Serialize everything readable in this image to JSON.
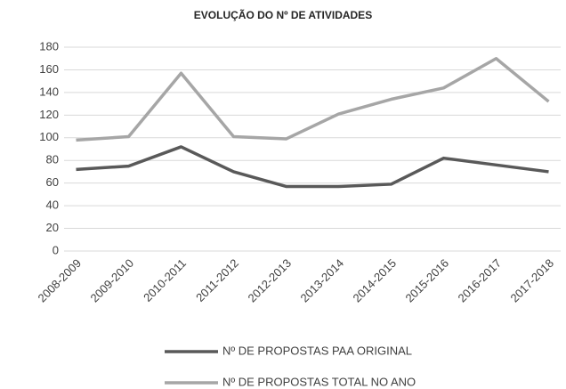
{
  "chart_data": {
    "type": "line",
    "title": "EVOLUÇÃO DO Nº DE ATIVIDADES",
    "categories": [
      "2008-2009",
      "2009-2010",
      "2010-2011",
      "2011-2012",
      "2012-2013",
      "2013-2014",
      "2014-2015",
      "2015-2016",
      "2016-2017",
      "2017-2018"
    ],
    "series": [
      {
        "name": "Nº DE PROPOSTAS PAA ORIGINAL",
        "color": "#595959",
        "values": [
          72,
          75,
          92,
          70,
          57,
          57,
          59,
          82,
          76,
          70
        ]
      },
      {
        "name": "Nº DE PROPOSTAS TOTAL NO ANO",
        "color": "#a6a6a6",
        "values": [
          98,
          101,
          157,
          101,
          99,
          121,
          134,
          144,
          170,
          132
        ]
      }
    ],
    "ylim": [
      0,
      180
    ],
    "yticks": [
      0,
      20,
      40,
      60,
      80,
      100,
      120,
      140,
      160,
      180
    ],
    "grid": true,
    "legend": "bottom"
  }
}
